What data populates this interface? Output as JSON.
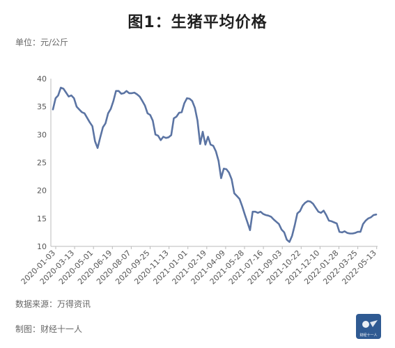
{
  "header": {
    "title": "图1：生猪平均价格",
    "unit": "单位：元/公斤"
  },
  "footer": {
    "source": "数据来源：万得资讯",
    "maker": "制图：财经十一人",
    "logo_text": "财经十一人"
  },
  "colors": {
    "line": "#5b74a3",
    "axis": "#bbbbbb",
    "logo_bg": "#2f5a92"
  },
  "chart_data": {
    "type": "line",
    "title": "图1：生猪平均价格",
    "ylabel": "单位：元/公斤",
    "ylim": [
      10,
      40
    ],
    "yticks": [
      10,
      15,
      20,
      25,
      30,
      35,
      40
    ],
    "grid": false,
    "xtick_labels": [
      "2020-01-03",
      "2020-03-13",
      "2020-05-01",
      "2020-06-19",
      "2020-08-07",
      "2020-09-25",
      "2020-11-13",
      "2021-01-01",
      "2021-02-19",
      "2021-04-09",
      "2021-05-28",
      "2021-07-16",
      "2021-09-03",
      "2021-10-22",
      "2021-12-10",
      "2022-01-28",
      "2022-03-25",
      "2022-05-13"
    ],
    "series": [
      {
        "values": [
          34.5,
          36.5,
          37.0,
          38.4,
          38.2,
          37.5,
          36.8,
          37.0,
          36.5,
          35.0,
          34.5,
          34.0,
          33.8,
          33.0,
          32.2,
          31.5,
          28.8,
          27.6,
          29.5,
          31.3,
          32.0,
          33.8,
          34.6,
          36.0,
          37.8,
          37.8,
          37.3,
          37.4,
          37.8,
          37.4,
          37.4,
          37.5,
          37.2,
          36.8,
          36.0,
          35.2,
          33.8,
          33.5,
          32.5,
          30.0,
          29.8,
          29.0,
          29.6,
          29.4,
          29.5,
          29.9,
          32.9,
          33.2,
          33.9,
          34.0,
          35.6,
          36.5,
          36.4,
          36.0,
          34.8,
          32.5,
          28.3,
          30.5,
          28.2,
          29.6,
          28.2,
          28.0,
          27.0,
          25.3,
          22.2,
          23.9,
          23.8,
          23.2,
          22.0,
          19.5,
          19.0,
          18.5,
          17.2,
          15.7,
          14.3,
          12.9,
          16.2,
          16.2,
          16.0,
          16.2,
          15.8,
          15.6,
          15.5,
          15.3,
          14.8,
          14.4,
          14.0,
          13.0,
          12.5,
          11.2,
          10.8,
          11.9,
          13.8,
          15.9,
          16.3,
          17.3,
          17.8,
          18.1,
          18.0,
          17.6,
          16.9,
          16.2,
          16.0,
          16.4,
          15.6,
          14.6,
          14.5,
          14.3,
          14.1,
          12.6,
          12.5,
          12.7,
          12.4,
          12.3,
          12.3,
          12.4,
          12.6,
          12.6,
          14.0,
          14.6,
          15.0,
          15.2,
          15.6,
          15.7
        ]
      }
    ]
  }
}
